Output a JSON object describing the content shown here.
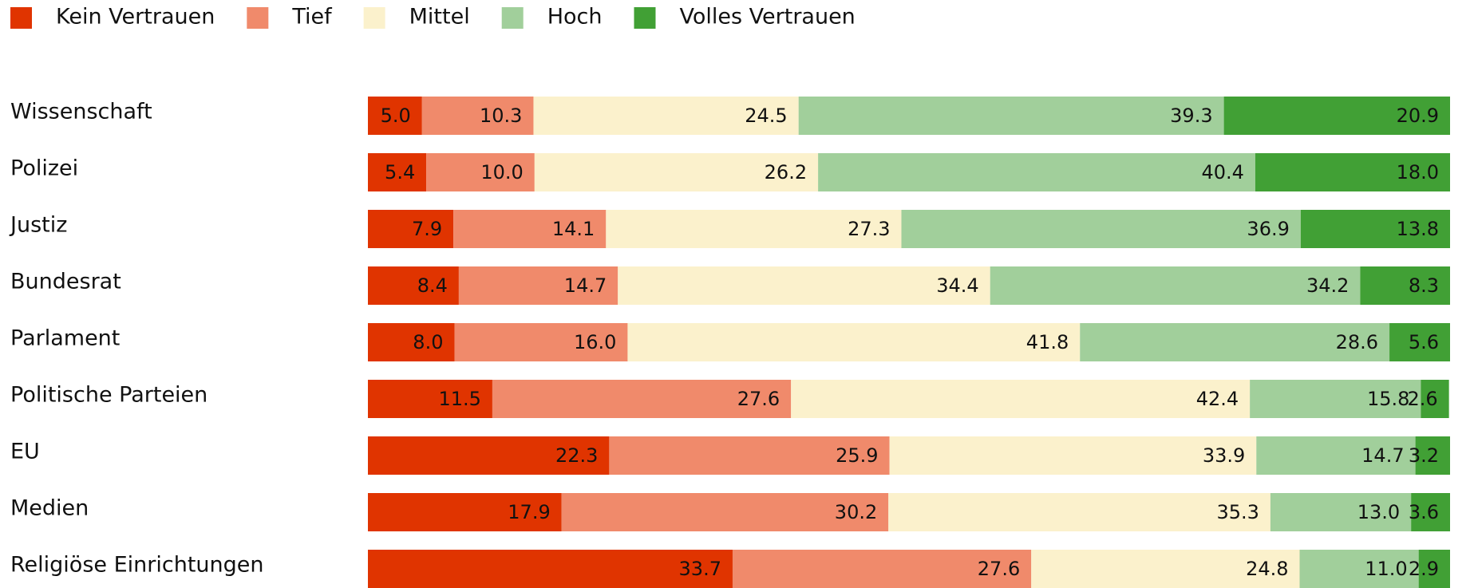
{
  "chart_data": {
    "type": "stacked_bar_horizontal",
    "categories": [
      "Wissenschaft",
      "Polizei",
      "Justiz",
      "Bundesrat",
      "Parlament",
      "Politische Parteien",
      "EU",
      "Medien",
      "Religiöse Einrichtungen"
    ],
    "xlim": [
      0,
      100
    ],
    "legend": "top-left",
    "series": [
      {
        "name": "Kein Vertrauen",
        "color": "#e03400",
        "values": [
          5.0,
          5.4,
          7.9,
          8.4,
          8.0,
          11.5,
          22.3,
          17.9,
          33.7
        ],
        "value_labels": [
          "5.0",
          "5.4",
          "7.9",
          "8.4",
          "8.0",
          "11.5",
          "22.3",
          "17.9",
          "33.7"
        ]
      },
      {
        "name": "Tief",
        "color": "#f08a6b",
        "values": [
          10.3,
          10.0,
          14.1,
          14.7,
          16.0,
          27.6,
          25.9,
          30.2,
          27.6
        ],
        "value_labels": [
          "10.3",
          "10.0",
          "14.1",
          "14.7",
          "16.0",
          "27.6",
          "25.9",
          "30.2",
          "27.6"
        ]
      },
      {
        "name": "Mittel",
        "color": "#fbf1cc",
        "values": [
          24.5,
          26.2,
          27.3,
          34.4,
          41.8,
          42.4,
          33.9,
          35.3,
          24.8
        ],
        "value_labels": [
          "24.5",
          "26.2",
          "27.3",
          "34.4",
          "41.8",
          "42.4",
          "33.9",
          "35.3",
          "24.8"
        ]
      },
      {
        "name": "Hoch",
        "color": "#a1cf9b",
        "values": [
          39.3,
          40.4,
          36.9,
          34.2,
          28.6,
          15.8,
          14.7,
          13.0,
          11.0
        ],
        "value_labels": [
          "39.3",
          "40.4",
          "36.9",
          "34.2",
          "28.6",
          "15.8",
          "14.7",
          "13.0",
          "11.0"
        ]
      },
      {
        "name": "Volles Vertrauen",
        "color": "#41a035",
        "values": [
          20.9,
          18.0,
          13.8,
          8.3,
          5.6,
          2.6,
          3.2,
          3.6,
          2.9
        ],
        "value_labels": [
          "20.9",
          "18.0",
          "13.8",
          "8.3",
          "5.6",
          "2.6",
          "3.2",
          "3.6",
          "2.9"
        ]
      }
    ]
  }
}
